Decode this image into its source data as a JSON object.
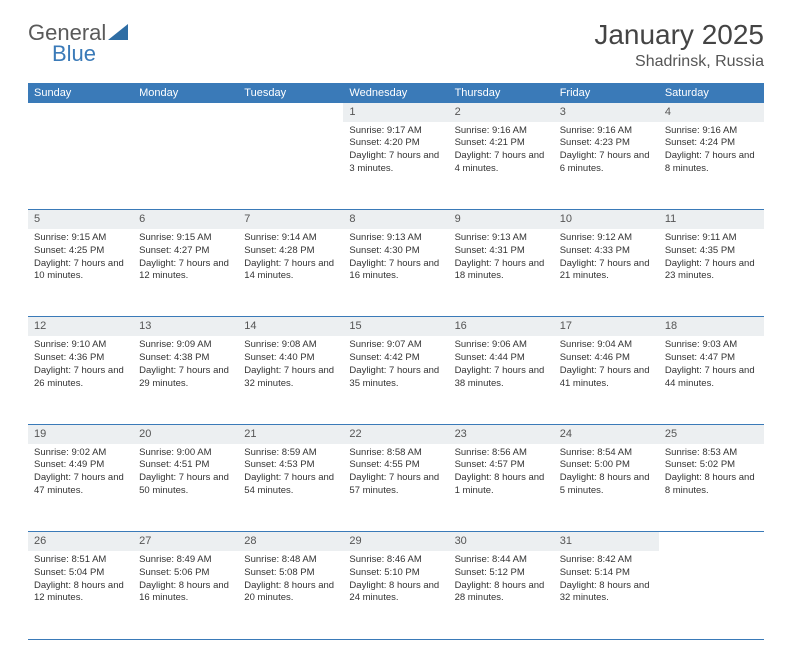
{
  "logo": {
    "general": "General",
    "blue": "Blue"
  },
  "title": "January 2025",
  "location": "Shadrinsk, Russia",
  "weekdays": [
    "Sunday",
    "Monday",
    "Tuesday",
    "Wednesday",
    "Thursday",
    "Friday",
    "Saturday"
  ],
  "colors": {
    "header_bg": "#3a7ab8",
    "header_text": "#ffffff",
    "daynum_bg": "#eceff1",
    "row_border": "#3a7ab8",
    "text": "#333333",
    "background": "#ffffff"
  },
  "typography": {
    "title_fontsize": 28,
    "location_fontsize": 16,
    "weekday_fontsize": 11,
    "daynum_fontsize": 11,
    "cell_fontsize": 9.5
  },
  "layout": {
    "columns": 7,
    "rows": 5,
    "first_day_column": 3
  },
  "weeks": [
    [
      null,
      null,
      null,
      {
        "n": "1",
        "sr": "Sunrise: 9:17 AM",
        "ss": "Sunset: 4:20 PM",
        "dl": "Daylight: 7 hours and 3 minutes."
      },
      {
        "n": "2",
        "sr": "Sunrise: 9:16 AM",
        "ss": "Sunset: 4:21 PM",
        "dl": "Daylight: 7 hours and 4 minutes."
      },
      {
        "n": "3",
        "sr": "Sunrise: 9:16 AM",
        "ss": "Sunset: 4:23 PM",
        "dl": "Daylight: 7 hours and 6 minutes."
      },
      {
        "n": "4",
        "sr": "Sunrise: 9:16 AM",
        "ss": "Sunset: 4:24 PM",
        "dl": "Daylight: 7 hours and 8 minutes."
      }
    ],
    [
      {
        "n": "5",
        "sr": "Sunrise: 9:15 AM",
        "ss": "Sunset: 4:25 PM",
        "dl": "Daylight: 7 hours and 10 minutes."
      },
      {
        "n": "6",
        "sr": "Sunrise: 9:15 AM",
        "ss": "Sunset: 4:27 PM",
        "dl": "Daylight: 7 hours and 12 minutes."
      },
      {
        "n": "7",
        "sr": "Sunrise: 9:14 AM",
        "ss": "Sunset: 4:28 PM",
        "dl": "Daylight: 7 hours and 14 minutes."
      },
      {
        "n": "8",
        "sr": "Sunrise: 9:13 AM",
        "ss": "Sunset: 4:30 PM",
        "dl": "Daylight: 7 hours and 16 minutes."
      },
      {
        "n": "9",
        "sr": "Sunrise: 9:13 AM",
        "ss": "Sunset: 4:31 PM",
        "dl": "Daylight: 7 hours and 18 minutes."
      },
      {
        "n": "10",
        "sr": "Sunrise: 9:12 AM",
        "ss": "Sunset: 4:33 PM",
        "dl": "Daylight: 7 hours and 21 minutes."
      },
      {
        "n": "11",
        "sr": "Sunrise: 9:11 AM",
        "ss": "Sunset: 4:35 PM",
        "dl": "Daylight: 7 hours and 23 minutes."
      }
    ],
    [
      {
        "n": "12",
        "sr": "Sunrise: 9:10 AM",
        "ss": "Sunset: 4:36 PM",
        "dl": "Daylight: 7 hours and 26 minutes."
      },
      {
        "n": "13",
        "sr": "Sunrise: 9:09 AM",
        "ss": "Sunset: 4:38 PM",
        "dl": "Daylight: 7 hours and 29 minutes."
      },
      {
        "n": "14",
        "sr": "Sunrise: 9:08 AM",
        "ss": "Sunset: 4:40 PM",
        "dl": "Daylight: 7 hours and 32 minutes."
      },
      {
        "n": "15",
        "sr": "Sunrise: 9:07 AM",
        "ss": "Sunset: 4:42 PM",
        "dl": "Daylight: 7 hours and 35 minutes."
      },
      {
        "n": "16",
        "sr": "Sunrise: 9:06 AM",
        "ss": "Sunset: 4:44 PM",
        "dl": "Daylight: 7 hours and 38 minutes."
      },
      {
        "n": "17",
        "sr": "Sunrise: 9:04 AM",
        "ss": "Sunset: 4:46 PM",
        "dl": "Daylight: 7 hours and 41 minutes."
      },
      {
        "n": "18",
        "sr": "Sunrise: 9:03 AM",
        "ss": "Sunset: 4:47 PM",
        "dl": "Daylight: 7 hours and 44 minutes."
      }
    ],
    [
      {
        "n": "19",
        "sr": "Sunrise: 9:02 AM",
        "ss": "Sunset: 4:49 PM",
        "dl": "Daylight: 7 hours and 47 minutes."
      },
      {
        "n": "20",
        "sr": "Sunrise: 9:00 AM",
        "ss": "Sunset: 4:51 PM",
        "dl": "Daylight: 7 hours and 50 minutes."
      },
      {
        "n": "21",
        "sr": "Sunrise: 8:59 AM",
        "ss": "Sunset: 4:53 PM",
        "dl": "Daylight: 7 hours and 54 minutes."
      },
      {
        "n": "22",
        "sr": "Sunrise: 8:58 AM",
        "ss": "Sunset: 4:55 PM",
        "dl": "Daylight: 7 hours and 57 minutes."
      },
      {
        "n": "23",
        "sr": "Sunrise: 8:56 AM",
        "ss": "Sunset: 4:57 PM",
        "dl": "Daylight: 8 hours and 1 minute."
      },
      {
        "n": "24",
        "sr": "Sunrise: 8:54 AM",
        "ss": "Sunset: 5:00 PM",
        "dl": "Daylight: 8 hours and 5 minutes."
      },
      {
        "n": "25",
        "sr": "Sunrise: 8:53 AM",
        "ss": "Sunset: 5:02 PM",
        "dl": "Daylight: 8 hours and 8 minutes."
      }
    ],
    [
      {
        "n": "26",
        "sr": "Sunrise: 8:51 AM",
        "ss": "Sunset: 5:04 PM",
        "dl": "Daylight: 8 hours and 12 minutes."
      },
      {
        "n": "27",
        "sr": "Sunrise: 8:49 AM",
        "ss": "Sunset: 5:06 PM",
        "dl": "Daylight: 8 hours and 16 minutes."
      },
      {
        "n": "28",
        "sr": "Sunrise: 8:48 AM",
        "ss": "Sunset: 5:08 PM",
        "dl": "Daylight: 8 hours and 20 minutes."
      },
      {
        "n": "29",
        "sr": "Sunrise: 8:46 AM",
        "ss": "Sunset: 5:10 PM",
        "dl": "Daylight: 8 hours and 24 minutes."
      },
      {
        "n": "30",
        "sr": "Sunrise: 8:44 AM",
        "ss": "Sunset: 5:12 PM",
        "dl": "Daylight: 8 hours and 28 minutes."
      },
      {
        "n": "31",
        "sr": "Sunrise: 8:42 AM",
        "ss": "Sunset: 5:14 PM",
        "dl": "Daylight: 8 hours and 32 minutes."
      },
      null
    ]
  ]
}
